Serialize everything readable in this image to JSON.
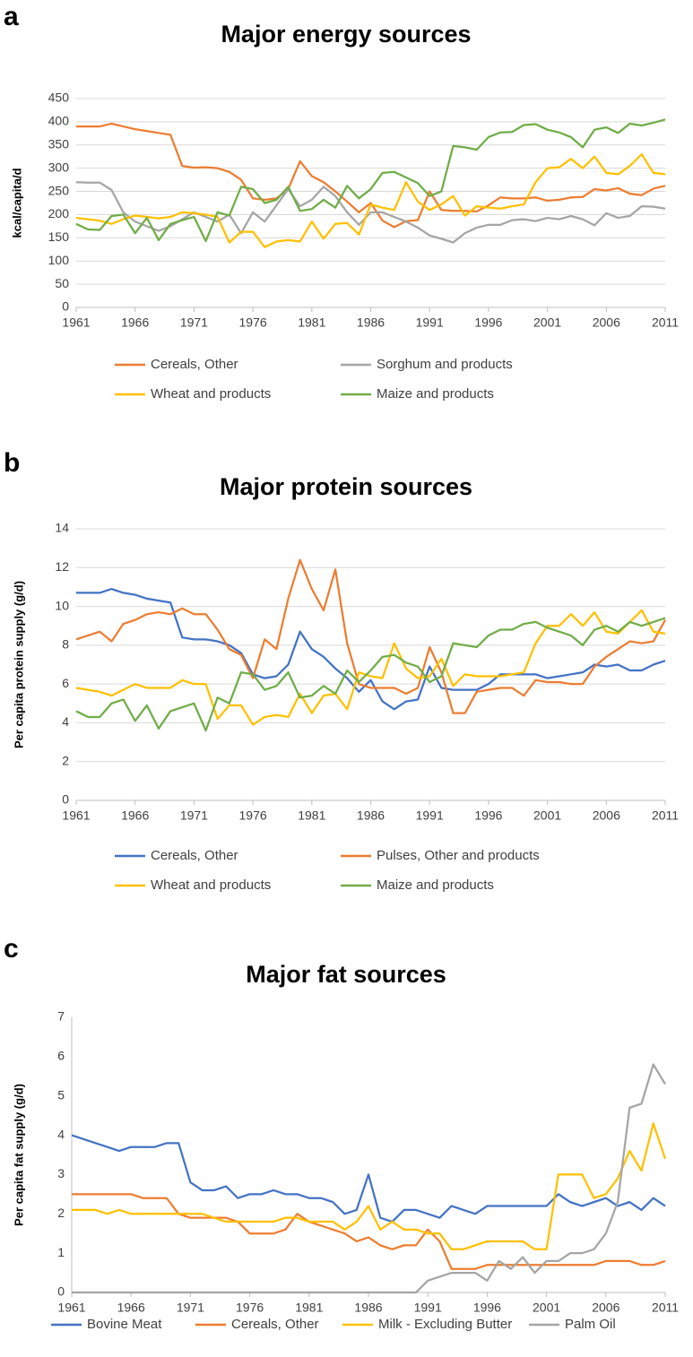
{
  "chart_data": [
    {
      "type": "line",
      "label": "a",
      "title": "Major energy sources",
      "y_label": "kcal/capita/d",
      "x": [
        1961,
        1962,
        1963,
        1964,
        1965,
        1966,
        1967,
        1968,
        1969,
        1970,
        1971,
        1972,
        1973,
        1974,
        1975,
        1976,
        1977,
        1978,
        1979,
        1980,
        1981,
        1982,
        1983,
        1984,
        1985,
        1986,
        1987,
        1988,
        1989,
        1990,
        1991,
        1992,
        1993,
        1994,
        1995,
        1996,
        1997,
        1998,
        1999,
        2000,
        2001,
        2002,
        2003,
        2004,
        2005,
        2006,
        2007,
        2008,
        2009,
        2010,
        2011
      ],
      "xlim": [
        1961,
        2011
      ],
      "xticks": [
        1961,
        1966,
        1971,
        1976,
        1981,
        1986,
        1991,
        1996,
        2001,
        2006,
        2011
      ],
      "ylim": [
        0,
        450
      ],
      "yticks": [
        0,
        50,
        100,
        150,
        200,
        250,
        300,
        350,
        400,
        450
      ],
      "grid": true,
      "series": [
        {
          "name": "Cereals, Other",
          "color": "#ed7d31",
          "values": [
            390,
            390,
            390,
            396,
            390,
            384,
            380,
            376,
            372,
            305,
            301,
            302,
            300,
            292,
            275,
            235,
            232,
            235,
            255,
            315,
            283,
            270,
            250,
            228,
            205,
            225,
            187,
            173,
            186,
            188,
            250,
            210,
            208,
            208,
            207,
            220,
            237,
            235,
            235,
            237,
            230,
            232,
            237,
            238,
            255,
            252,
            257,
            245,
            242,
            256,
            262
          ]
        },
        {
          "name": "Sorghum and products",
          "color": "#a5a5a5",
          "values": [
            270,
            269,
            269,
            253,
            205,
            185,
            175,
            165,
            175,
            190,
            205,
            195,
            185,
            200,
            160,
            205,
            185,
            220,
            255,
            218,
            232,
            260,
            240,
            205,
            178,
            205,
            205,
            195,
            185,
            172,
            155,
            148,
            140,
            160,
            172,
            178,
            178,
            188,
            190,
            186,
            193,
            190,
            197,
            190,
            177,
            203,
            193,
            197,
            218,
            217,
            213
          ]
        },
        {
          "name": "Wheat and products",
          "color": "#ffc000",
          "values": [
            193,
            190,
            187,
            180,
            190,
            198,
            195,
            192,
            195,
            205,
            203,
            200,
            195,
            140,
            163,
            163,
            130,
            142,
            145,
            142,
            185,
            148,
            180,
            182,
            157,
            222,
            215,
            210,
            270,
            228,
            210,
            222,
            240,
            198,
            218,
            215,
            213,
            218,
            222,
            270,
            300,
            302,
            320,
            300,
            325,
            290,
            287,
            305,
            330,
            290,
            287
          ]
        },
        {
          "name": "Maize and products",
          "color": "#70ad47",
          "values": [
            180,
            168,
            167,
            197,
            200,
            160,
            193,
            145,
            180,
            188,
            195,
            143,
            205,
            198,
            260,
            255,
            225,
            232,
            260,
            208,
            212,
            232,
            215,
            262,
            235,
            255,
            290,
            292,
            280,
            268,
            240,
            250,
            348,
            345,
            340,
            367,
            377,
            378,
            393,
            395,
            383,
            377,
            367,
            345,
            383,
            388,
            376,
            396,
            392,
            398,
            405
          ]
        }
      ]
    },
    {
      "type": "line",
      "label": "b",
      "title": "Major protein sources",
      "y_label": "Per capita protein supply (g/d)",
      "x": [
        1961,
        1962,
        1963,
        1964,
        1965,
        1966,
        1967,
        1968,
        1969,
        1970,
        1971,
        1972,
        1973,
        1974,
        1975,
        1976,
        1977,
        1978,
        1979,
        1980,
        1981,
        1982,
        1983,
        1984,
        1985,
        1986,
        1987,
        1988,
        1989,
        1990,
        1991,
        1992,
        1993,
        1994,
        1995,
        1996,
        1997,
        1998,
        1999,
        2000,
        2001,
        2002,
        2003,
        2004,
        2005,
        2006,
        2007,
        2008,
        2009,
        2010,
        2011
      ],
      "xlim": [
        1961,
        2011
      ],
      "xticks": [
        1961,
        1966,
        1971,
        1976,
        1981,
        1986,
        1991,
        1996,
        2001,
        2006,
        2011
      ],
      "ylim": [
        0,
        14
      ],
      "yticks": [
        0,
        2,
        4,
        6,
        8,
        10,
        12,
        14
      ],
      "grid": true,
      "series": [
        {
          "name": "Cereals, Other",
          "color": "#4472c4",
          "values": [
            10.7,
            10.7,
            10.7,
            10.9,
            10.7,
            10.6,
            10.4,
            10.3,
            10.2,
            8.4,
            8.3,
            8.3,
            8.2,
            8.0,
            7.6,
            6.5,
            6.3,
            6.4,
            7.0,
            8.7,
            7.8,
            7.4,
            6.8,
            6.3,
            5.6,
            6.2,
            5.1,
            4.7,
            5.1,
            5.2,
            6.9,
            5.8,
            5.7,
            5.7,
            5.7,
            6.0,
            6.5,
            6.5,
            6.5,
            6.5,
            6.3,
            6.4,
            6.5,
            6.6,
            7.0,
            6.9,
            7.0,
            6.7,
            6.7,
            7.0,
            7.2
          ]
        },
        {
          "name": "Pulses, Other and products",
          "color": "#ed7d31",
          "values": [
            8.3,
            8.5,
            8.7,
            8.2,
            9.1,
            9.3,
            9.6,
            9.7,
            9.6,
            9.9,
            9.6,
            9.6,
            8.8,
            7.8,
            7.5,
            6.3,
            8.3,
            7.8,
            10.4,
            12.4,
            10.9,
            9.8,
            11.9,
            8.1,
            6.0,
            5.8,
            5.8,
            5.8,
            5.5,
            5.8,
            7.9,
            6.6,
            4.5,
            4.5,
            5.6,
            5.7,
            5.8,
            5.8,
            5.4,
            6.2,
            6.1,
            6.1,
            6.0,
            6.0,
            6.9,
            7.4,
            7.8,
            8.2,
            8.1,
            8.2,
            9.3
          ]
        },
        {
          "name": "Wheat and products",
          "color": "#ffc000",
          "values": [
            5.8,
            5.7,
            5.6,
            5.4,
            5.7,
            6.0,
            5.8,
            5.8,
            5.8,
            6.2,
            6.0,
            6.0,
            4.2,
            4.9,
            4.9,
            3.9,
            4.3,
            4.4,
            4.3,
            5.5,
            4.5,
            5.4,
            5.5,
            4.7,
            6.6,
            6.4,
            6.3,
            8.1,
            6.8,
            6.3,
            6.4,
            7.3,
            5.9,
            6.5,
            6.4,
            6.4,
            6.4,
            6.5,
            6.6,
            8.1,
            9.0,
            9.0,
            9.6,
            9.0,
            9.7,
            8.7,
            8.6,
            9.2,
            9.8,
            8.7,
            8.6
          ]
        },
        {
          "name": "Maize and products",
          "color": "#70ad47",
          "values": [
            4.6,
            4.3,
            4.3,
            5.0,
            5.2,
            4.1,
            4.9,
            3.7,
            4.6,
            4.8,
            5.0,
            3.6,
            5.3,
            5.0,
            6.6,
            6.5,
            5.7,
            5.9,
            6.6,
            5.3,
            5.4,
            5.9,
            5.5,
            6.7,
            6.1,
            6.7,
            7.4,
            7.5,
            7.1,
            6.9,
            6.1,
            6.4,
            8.1,
            8.0,
            7.9,
            8.5,
            8.8,
            8.8,
            9.1,
            9.2,
            8.9,
            8.7,
            8.5,
            8.0,
            8.8,
            9.0,
            8.7,
            9.2,
            9.0,
            9.2,
            9.4
          ]
        }
      ]
    },
    {
      "type": "line",
      "label": "c",
      "title": "Major fat sources",
      "y_label": "Per capita fat supply (g/d)",
      "x": [
        1961,
        1962,
        1963,
        1964,
        1965,
        1966,
        1967,
        1968,
        1969,
        1970,
        1971,
        1972,
        1973,
        1974,
        1975,
        1976,
        1977,
        1978,
        1979,
        1980,
        1981,
        1982,
        1983,
        1984,
        1985,
        1986,
        1987,
        1988,
        1989,
        1990,
        1991,
        1992,
        1993,
        1994,
        1995,
        1996,
        1997,
        1998,
        1999,
        2000,
        2001,
        2002,
        2003,
        2004,
        2005,
        2006,
        2007,
        2008,
        2009,
        2010,
        2011
      ],
      "xlim": [
        1961,
        2011
      ],
      "xticks": [
        1961,
        1966,
        1971,
        1976,
        1981,
        1986,
        1991,
        1996,
        2001,
        2006,
        2011
      ],
      "ylim": [
        0,
        7
      ],
      "yticks": [
        0,
        1,
        2,
        3,
        4,
        5,
        6,
        7
      ],
      "grid": false,
      "series": [
        {
          "name": "Bovine Meat",
          "color": "#4472c4",
          "values": [
            4.0,
            3.9,
            3.8,
            3.7,
            3.6,
            3.7,
            3.7,
            3.7,
            3.8,
            3.8,
            2.8,
            2.6,
            2.6,
            2.7,
            2.4,
            2.5,
            2.5,
            2.6,
            2.5,
            2.5,
            2.4,
            2.4,
            2.3,
            2.0,
            2.1,
            3.0,
            1.9,
            1.8,
            2.1,
            2.1,
            2.0,
            1.9,
            2.2,
            2.1,
            2.0,
            2.2,
            2.2,
            2.2,
            2.2,
            2.2,
            2.2,
            2.5,
            2.3,
            2.2,
            2.3,
            2.4,
            2.2,
            2.3,
            2.1,
            2.4,
            2.2
          ]
        },
        {
          "name": "Cereals, Other",
          "color": "#ed7d31",
          "values": [
            2.5,
            2.5,
            2.5,
            2.5,
            2.5,
            2.5,
            2.4,
            2.4,
            2.4,
            2.0,
            1.9,
            1.9,
            1.9,
            1.9,
            1.8,
            1.5,
            1.5,
            1.5,
            1.6,
            2.0,
            1.8,
            1.7,
            1.6,
            1.5,
            1.3,
            1.4,
            1.2,
            1.1,
            1.2,
            1.2,
            1.6,
            1.3,
            0.6,
            0.6,
            0.6,
            0.7,
            0.7,
            0.7,
            0.7,
            0.7,
            0.7,
            0.7,
            0.7,
            0.7,
            0.7,
            0.8,
            0.8,
            0.8,
            0.7,
            0.7,
            0.8
          ]
        },
        {
          "name": "Milk - Excluding Butter",
          "color": "#ffc000",
          "values": [
            2.1,
            2.1,
            2.1,
            2.0,
            2.1,
            2.0,
            2.0,
            2.0,
            2.0,
            2.0,
            2.0,
            2.0,
            1.9,
            1.8,
            1.8,
            1.8,
            1.8,
            1.8,
            1.9,
            1.9,
            1.8,
            1.8,
            1.8,
            1.6,
            1.8,
            2.2,
            1.6,
            1.8,
            1.6,
            1.6,
            1.5,
            1.5,
            1.1,
            1.1,
            1.2,
            1.3,
            1.3,
            1.3,
            1.3,
            1.1,
            1.1,
            3.0,
            3.0,
            3.0,
            2.4,
            2.5,
            2.9,
            3.6,
            3.1,
            4.3,
            3.4
          ]
        },
        {
          "name": "Palm Oil",
          "color": "#a5a5a5",
          "values": [
            0,
            0,
            0,
            0,
            0,
            0,
            0,
            0,
            0,
            0,
            0,
            0,
            0,
            0,
            0,
            0,
            0,
            0,
            0,
            0,
            0,
            0,
            0,
            0,
            0,
            0,
            0,
            0,
            0,
            0,
            0.3,
            0.4,
            0.5,
            0.5,
            0.5,
            0.3,
            0.8,
            0.6,
            0.9,
            0.5,
            0.8,
            0.8,
            1.0,
            1.0,
            1.1,
            1.5,
            2.3,
            4.7,
            4.8,
            5.8,
            5.3
          ]
        }
      ]
    }
  ]
}
